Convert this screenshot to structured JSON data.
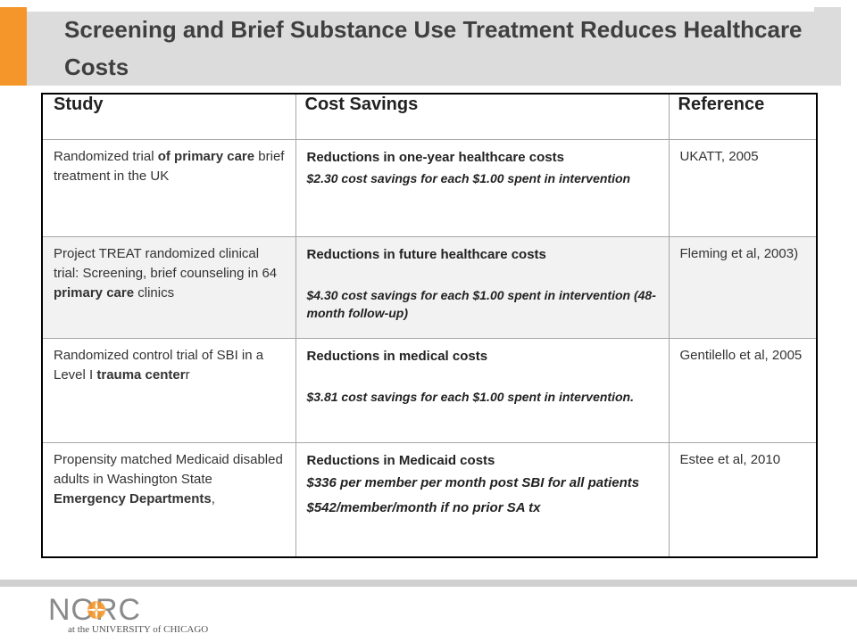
{
  "slide": {
    "title": "Screening and Brief Substance Use Treatment  Reduces Healthcare Costs"
  },
  "table": {
    "headers": [
      "Study",
      "Cost Savings",
      "Reference"
    ],
    "rows": [
      {
        "study": [
          "Randomized trial ",
          "of primary care",
          " brief treatment in the UK"
        ],
        "savings_title": "Reductions in one-year healthcare costs",
        "savings_detail": "$2.30 cost savings for each $1.00 spent  in intervention",
        "reference": "UKATT, 2005"
      },
      {
        "study": [
          "Project TREAT randomized clinical trial:  Screening, brief counseling in 64 ",
          "primary care",
          " clinics"
        ],
        "savings_title": "Reductions in future healthcare costs",
        "savings_detail": "$4.30 cost savings for each $1.00 spent in intervention (48-month follow-up)",
        "reference": "Fleming et al, 2003)"
      },
      {
        "study": [
          "Randomized control trial of SBI in a Level I ",
          "trauma center",
          "r"
        ],
        "savings_title": "Reductions in medical costs",
        "savings_detail": "$3.81 cost savings for each $1.00 spent in intervention.",
        "reference": "Gentilello et al, 2005"
      },
      {
        "study": [
          "Propensity matched Medicaid disabled adults in Washington State ",
          "Emergency Departments",
          ","
        ],
        "savings_title": "Reductions in Medicaid costs",
        "savings_detail": "$336 per member per month post SBI for all patients",
        "savings_detail_2": "$542/member/month if no prior SA tx",
        "reference": "Estee et al, 2010"
      }
    ]
  },
  "logo": {
    "name": "NORC",
    "subtitle": "at the UNIVERSITY of CHICAGO",
    "icon": "sun-star-icon",
    "color": "#f5962a"
  },
  "colors": {
    "accent": "#f5962a",
    "title_band": "#dcdcdc",
    "row_shade": "#f2f2f2"
  }
}
